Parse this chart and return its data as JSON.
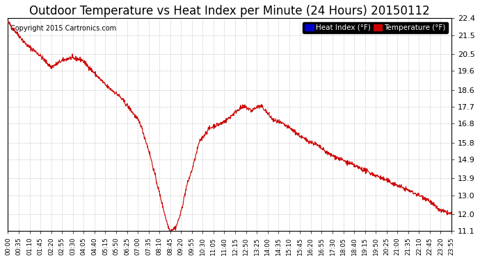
{
  "title": "Outdoor Temperature vs Heat Index per Minute (24 Hours) 20150112",
  "copyright_text": "Copyright 2015 Cartronics.com",
  "legend_labels": [
    "Heat Index (°F)",
    "Temperature (°F)"
  ],
  "line_color": "#cc0000",
  "background_color": "#ffffff",
  "plot_bg_color": "#ffffff",
  "grid_color": "#cccccc",
  "yticks": [
    11.1,
    12.0,
    13.0,
    13.9,
    14.9,
    15.8,
    16.8,
    17.7,
    18.6,
    19.6,
    20.5,
    21.5,
    22.4
  ],
  "xtick_labels": [
    "00:00",
    "00:35",
    "01:10",
    "01:45",
    "02:20",
    "02:55",
    "03:30",
    "04:05",
    "04:40",
    "05:15",
    "05:50",
    "06:25",
    "07:00",
    "07:35",
    "08:10",
    "08:45",
    "09:20",
    "09:55",
    "10:30",
    "11:05",
    "11:40",
    "12:15",
    "12:50",
    "13:25",
    "14:00",
    "14:35",
    "15:10",
    "15:45",
    "16:20",
    "16:55",
    "17:30",
    "18:05",
    "18:40",
    "19:15",
    "19:50",
    "20:25",
    "21:00",
    "21:35",
    "22:10",
    "22:45",
    "23:20",
    "23:55"
  ],
  "control_t": [
    0,
    30,
    60,
    100,
    140,
    170,
    200,
    240,
    280,
    320,
    360,
    400,
    430,
    460,
    490,
    515,
    525,
    545,
    560,
    580,
    600,
    620,
    650,
    670,
    690,
    710,
    730,
    750,
    770,
    790,
    810,
    825,
    840,
    860,
    890,
    920,
    960,
    1000,
    1040,
    1080,
    1120,
    1160,
    1200,
    1240,
    1280,
    1320,
    1360,
    1400,
    1439
  ],
  "control_v": [
    22.2,
    21.6,
    21.0,
    20.5,
    19.8,
    20.1,
    20.3,
    20.2,
    19.5,
    18.8,
    18.3,
    17.5,
    16.8,
    15.2,
    13.2,
    11.6,
    11.1,
    11.3,
    12.0,
    13.5,
    14.5,
    15.8,
    16.5,
    16.7,
    16.8,
    17.0,
    17.3,
    17.6,
    17.7,
    17.5,
    17.7,
    17.7,
    17.4,
    17.0,
    16.8,
    16.5,
    16.0,
    15.7,
    15.2,
    14.9,
    14.6,
    14.3,
    14.0,
    13.7,
    13.4,
    13.1,
    12.8,
    12.2,
    12.0
  ],
  "ylim": [
    11.1,
    22.4
  ],
  "title_fontsize": 12,
  "copyright_fontsize": 7,
  "legend_fontsize": 7.5
}
